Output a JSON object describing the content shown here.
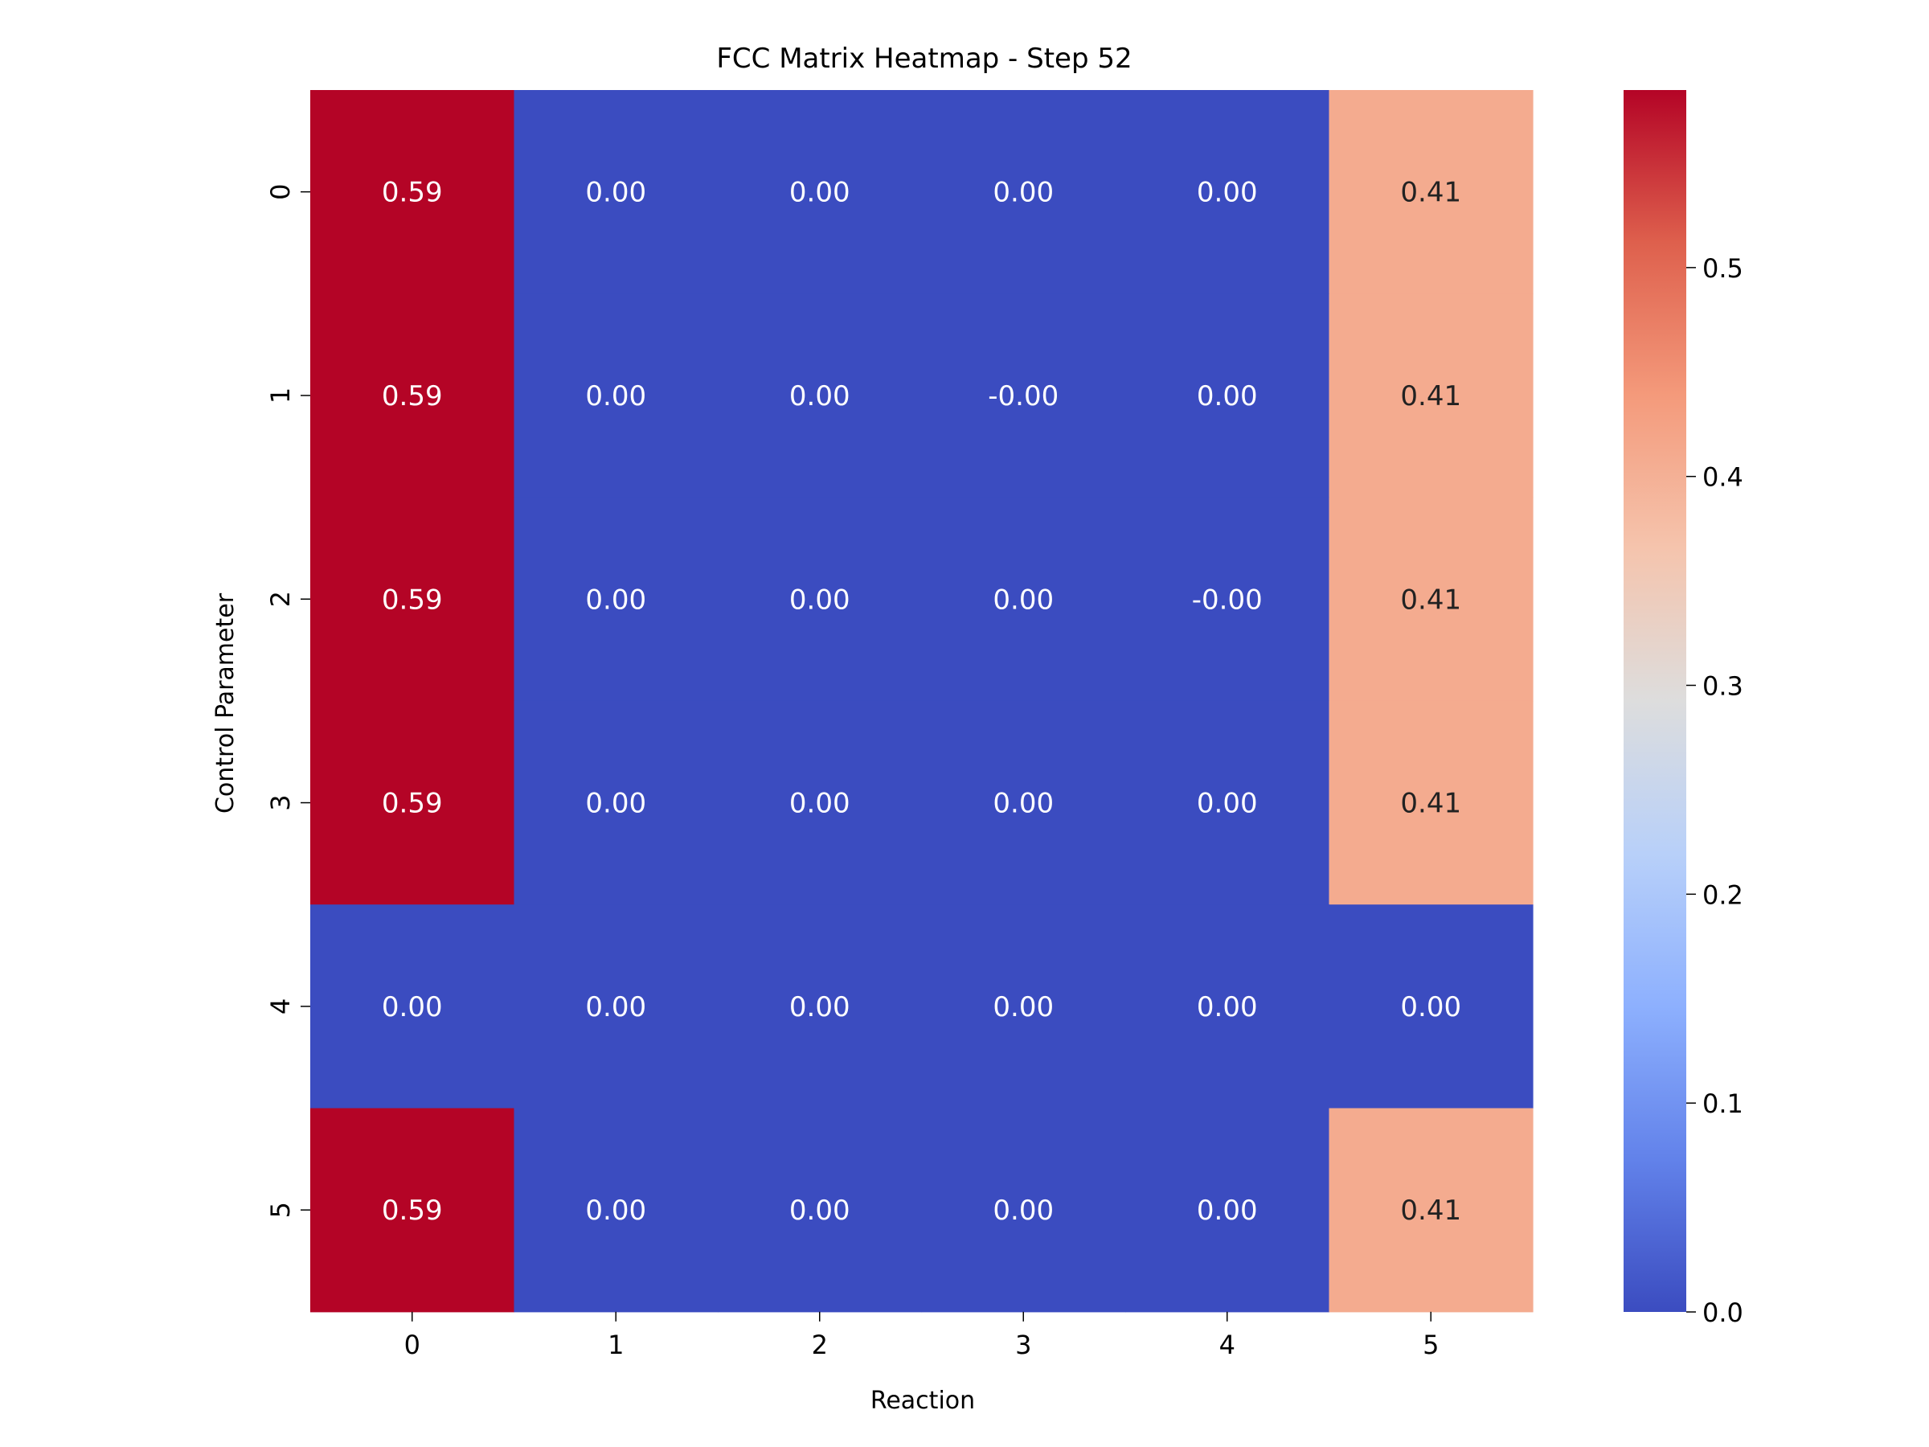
{
  "chart_data": {
    "type": "heatmap",
    "title": "FCC Matrix Heatmap - Step 52",
    "xlabel": "Reaction",
    "ylabel": "Control Parameter",
    "x_categories": [
      "0",
      "1",
      "2",
      "3",
      "4",
      "5"
    ],
    "y_categories": [
      "0",
      "1",
      "2",
      "3",
      "4",
      "5"
    ],
    "values": [
      [
        0.59,
        0.0,
        0.0,
        0.0,
        0.0,
        0.41
      ],
      [
        0.59,
        0.0,
        0.0,
        0.0,
        0.0,
        0.41
      ],
      [
        0.59,
        0.0,
        0.0,
        0.0,
        0.0,
        0.41
      ],
      [
        0.59,
        0.0,
        0.0,
        0.0,
        0.0,
        0.41
      ],
      [
        0.0,
        0.0,
        0.0,
        0.0,
        0.0,
        0.0
      ],
      [
        0.59,
        0.0,
        0.0,
        0.0,
        0.0,
        0.41
      ]
    ],
    "annotations": [
      [
        "0.59",
        "0.00",
        "0.00",
        "0.00",
        "0.00",
        "0.41"
      ],
      [
        "0.59",
        "0.00",
        "0.00",
        "-0.00",
        "0.00",
        "0.41"
      ],
      [
        "0.59",
        "0.00",
        "0.00",
        "0.00",
        "-0.00",
        "0.41"
      ],
      [
        "0.59",
        "0.00",
        "0.00",
        "0.00",
        "0.00",
        "0.41"
      ],
      [
        "0.00",
        "0.00",
        "0.00",
        "0.00",
        "0.00",
        "0.00"
      ],
      [
        "0.59",
        "0.00",
        "0.00",
        "0.00",
        "0.00",
        "0.41"
      ]
    ],
    "colormap": "coolwarm",
    "colorbar": {
      "vmin": 0.0,
      "vmax": 0.585,
      "ticks": [
        0.0,
        0.1,
        0.2,
        0.3,
        0.4,
        0.5
      ],
      "tick_labels": [
        "0.0",
        "0.1",
        "0.2",
        "0.3",
        "0.4",
        "0.5"
      ]
    },
    "grid": false,
    "legend": "colorbar-right"
  }
}
